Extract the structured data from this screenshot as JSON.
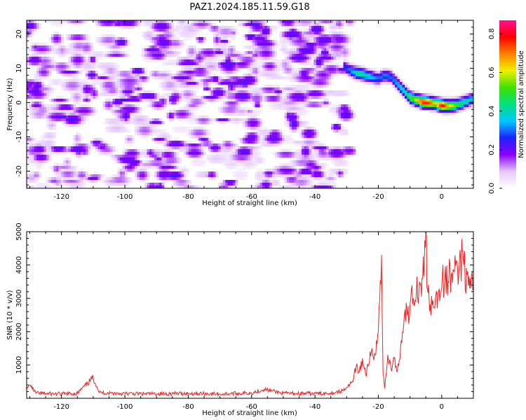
{
  "figure_title": "PAZ1.2024.185.11.59.G18",
  "chart_data": [
    {
      "type": "heatmap",
      "xlabel": "Height of straight line (km)",
      "ylabel": "Frequency (Hz)",
      "xlim": [
        -131,
        10
      ],
      "ylim": [
        -25,
        24
      ],
      "x_ticks": [
        -120,
        -100,
        -80,
        -60,
        -40,
        -20,
        0
      ],
      "y_ticks": [
        -20,
        -10,
        0,
        10,
        20
      ],
      "colorbar": {
        "label": "Normalized spectral amplitude",
        "range": [
          0,
          0.87
        ],
        "ticks": [
          0.0,
          0.2,
          0.4,
          0.6,
          0.8
        ],
        "colors": [
          "#ffffff",
          "#e6c8ff",
          "#8a00ff",
          "#2020ff",
          "#00c8ff",
          "#00e080",
          "#40e000",
          "#f0f000",
          "#ff8000",
          "#ff0000",
          "#ff1090"
        ]
      },
      "ridge": {
        "x": [
          -31,
          -28,
          -26,
          -24,
          -22,
          -20,
          -18,
          -16,
          -14,
          -12,
          -10,
          -8,
          -6,
          -4,
          -2,
          0,
          2,
          4,
          6,
          8,
          10
        ],
        "y": [
          10.5,
          9.0,
          8.5,
          8.0,
          7.5,
          7.0,
          8.0,
          7.5,
          5.5,
          3.5,
          1.5,
          0.8,
          0.2,
          0.0,
          -0.3,
          -0.8,
          -1.0,
          -0.8,
          -0.3,
          0.5,
          1.2
        ],
        "amplitude": [
          0.25,
          0.35,
          0.45,
          0.4,
          0.35,
          0.3,
          0.32,
          0.3,
          0.35,
          0.4,
          0.5,
          0.6,
          0.78,
          0.75,
          0.6,
          0.8,
          0.65,
          0.55,
          0.45,
          0.4,
          0.35
        ]
      },
      "noise_region_x": [
        -131,
        -29
      ],
      "noise_level": 0.12
    },
    {
      "type": "line",
      "xlabel": "Height of straight line (km)",
      "ylabel": "SNR (10 * v/v)",
      "xlim": [
        -131,
        10
      ],
      "ylim": [
        0,
        5000
      ],
      "x_ticks": [
        -120,
        -100,
        -80,
        -60,
        -40,
        -20,
        0
      ],
      "y_ticks": [
        1000,
        2000,
        3000,
        4000,
        5000
      ],
      "color": "#ee2222",
      "x": [
        -131,
        -130,
        -128,
        -125,
        -120,
        -115,
        -110,
        -108,
        -100,
        -90,
        -80,
        -70,
        -60,
        -56,
        -50,
        -40,
        -35,
        -32,
        -30,
        -28,
        -27,
        -26,
        -25,
        -24,
        -23,
        -22,
        -21,
        -20,
        -19,
        -18.5,
        -18,
        -17,
        -16,
        -15,
        -14,
        -13,
        -12,
        -11,
        -10,
        -9,
        -8,
        -7,
        -6,
        -5.5,
        -5,
        -4.5,
        -4,
        -3,
        -2,
        -1,
        0,
        1,
        2,
        3,
        4,
        5,
        6,
        6.5,
        7,
        8,
        9,
        10
      ],
      "y": [
        250,
        400,
        150,
        140,
        130,
        150,
        620,
        170,
        140,
        130,
        150,
        130,
        160,
        270,
        150,
        140,
        160,
        200,
        330,
        500,
        950,
        800,
        1200,
        700,
        1000,
        1500,
        1300,
        2000,
        4300,
        700,
        300,
        1300,
        900,
        1200,
        800,
        1500,
        2200,
        2600,
        2800,
        3000,
        3200,
        3500,
        3600,
        4000,
        5000,
        3300,
        3000,
        2800,
        3000,
        3200,
        3300,
        3600,
        3500,
        3700,
        3800,
        3900,
        4100,
        4400,
        4000,
        3700,
        3600,
        3300
      ]
    }
  ]
}
